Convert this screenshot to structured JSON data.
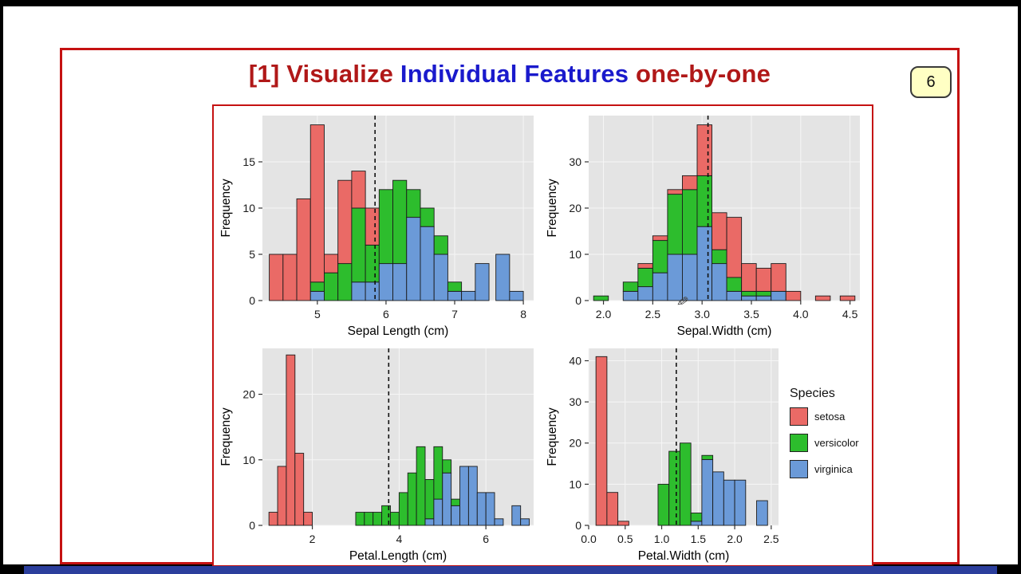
{
  "frame": {
    "bottom_bar_color": "#2b3e9c"
  },
  "slide": {
    "title": {
      "part1": "[1] Visualize ",
      "part2": "Individual Features",
      "part3": " one-by-one"
    },
    "page_number": "6",
    "accent_red": "#b01818",
    "accent_blue": "#1a1acc",
    "border_color": "#c51111"
  },
  "icons": {
    "pencil": "✎"
  },
  "legend": {
    "title": "Species",
    "entries": [
      {
        "label": "setosa",
        "color": "#ea6a66"
      },
      {
        "label": "versicolor",
        "color": "#2dbd2d"
      },
      {
        "label": "virginica",
        "color": "#6b9ad8"
      }
    ]
  },
  "panel_bg": "#e4e4e4",
  "species_colors": [
    "#ea6a66",
    "#2dbd2d",
    "#6b9ad8"
  ],
  "chart_data": [
    {
      "type": "bar",
      "subtype": "stacked-histogram",
      "x_label": "Sepal Length (cm)",
      "y_label": "Frequency",
      "xlim": [
        4.2,
        8.15
      ],
      "ylim": [
        0,
        20
      ],
      "xticks": [
        {
          "v": 5,
          "t": "5"
        },
        {
          "v": 6,
          "t": "6"
        },
        {
          "v": 7,
          "t": "7"
        },
        {
          "v": 8,
          "t": "8"
        }
      ],
      "yticks": [
        {
          "v": 0,
          "t": "0"
        },
        {
          "v": 5,
          "t": "5"
        },
        {
          "v": 10,
          "t": "10"
        },
        {
          "v": 15,
          "t": "15"
        }
      ],
      "mean_line_x": 5.84,
      "bin_width": 0.2,
      "series": [
        "setosa",
        "versicolor",
        "virginica"
      ],
      "bins": [
        {
          "x": 4.3,
          "counts": [
            5,
            0,
            0
          ]
        },
        {
          "x": 4.5,
          "counts": [
            5,
            0,
            0
          ]
        },
        {
          "x": 4.7,
          "counts": [
            11,
            0,
            0
          ]
        },
        {
          "x": 4.9,
          "counts": [
            17,
            1,
            1
          ]
        },
        {
          "x": 5.1,
          "counts": [
            2,
            3,
            0
          ]
        },
        {
          "x": 5.3,
          "counts": [
            9,
            4,
            0
          ]
        },
        {
          "x": 5.5,
          "counts": [
            4,
            8,
            2
          ]
        },
        {
          "x": 5.7,
          "counts": [
            4,
            4,
            2
          ]
        },
        {
          "x": 5.9,
          "counts": [
            0,
            8,
            4
          ]
        },
        {
          "x": 6.1,
          "counts": [
            0,
            9,
            4
          ]
        },
        {
          "x": 6.3,
          "counts": [
            0,
            3,
            9
          ]
        },
        {
          "x": 6.5,
          "counts": [
            0,
            2,
            8
          ]
        },
        {
          "x": 6.7,
          "counts": [
            0,
            2,
            5
          ]
        },
        {
          "x": 6.9,
          "counts": [
            0,
            1,
            1
          ]
        },
        {
          "x": 7.1,
          "counts": [
            0,
            0,
            1
          ]
        },
        {
          "x": 7.3,
          "counts": [
            0,
            0,
            4
          ]
        },
        {
          "x": 7.6,
          "counts": [
            0,
            0,
            5
          ]
        },
        {
          "x": 7.8,
          "counts": [
            0,
            0,
            1
          ]
        }
      ]
    },
    {
      "type": "bar",
      "subtype": "stacked-histogram",
      "x_label": "Sepal.Width (cm)",
      "y_label": "Frequency",
      "xlim": [
        1.85,
        4.6
      ],
      "ylim": [
        0,
        40
      ],
      "xticks": [
        {
          "v": 2.0,
          "t": "2.0"
        },
        {
          "v": 2.5,
          "t": "2.5"
        },
        {
          "v": 3.0,
          "t": "3.0"
        },
        {
          "v": 3.5,
          "t": "3.5"
        },
        {
          "v": 4.0,
          "t": "4.0"
        },
        {
          "v": 4.5,
          "t": "4.5"
        }
      ],
      "yticks": [
        {
          "v": 0,
          "t": "0"
        },
        {
          "v": 10,
          "t": "10"
        },
        {
          "v": 20,
          "t": "20"
        },
        {
          "v": 30,
          "t": "30"
        }
      ],
      "mean_line_x": 3.06,
      "bin_width": 0.15,
      "series": [
        "setosa",
        "versicolor",
        "virginica"
      ],
      "bins": [
        {
          "x": 1.9,
          "counts": [
            0,
            1,
            0
          ]
        },
        {
          "x": 2.2,
          "counts": [
            0,
            2,
            2
          ]
        },
        {
          "x": 2.35,
          "counts": [
            1,
            4,
            3
          ]
        },
        {
          "x": 2.5,
          "counts": [
            1,
            7,
            6
          ]
        },
        {
          "x": 2.65,
          "counts": [
            1,
            13,
            10
          ]
        },
        {
          "x": 2.8,
          "counts": [
            3,
            14,
            10
          ]
        },
        {
          "x": 2.95,
          "counts": [
            11,
            11,
            16
          ]
        },
        {
          "x": 3.1,
          "counts": [
            8,
            3,
            8
          ]
        },
        {
          "x": 3.25,
          "counts": [
            13,
            3,
            2
          ]
        },
        {
          "x": 3.4,
          "counts": [
            6,
            1,
            1
          ]
        },
        {
          "x": 3.55,
          "counts": [
            5,
            1,
            1
          ]
        },
        {
          "x": 3.7,
          "counts": [
            6,
            0,
            2
          ]
        },
        {
          "x": 3.85,
          "counts": [
            2,
            0,
            0
          ]
        },
        {
          "x": 4.15,
          "counts": [
            1,
            0,
            0
          ]
        },
        {
          "x": 4.4,
          "counts": [
            1,
            0,
            0
          ]
        }
      ]
    },
    {
      "type": "bar",
      "subtype": "stacked-histogram",
      "x_label": "Petal.Length (cm)",
      "y_label": "Frequency",
      "xlim": [
        0.85,
        7.1
      ],
      "ylim": [
        0,
        27
      ],
      "xticks": [
        {
          "v": 2,
          "t": "2"
        },
        {
          "v": 4,
          "t": "4"
        },
        {
          "v": 6,
          "t": "6"
        }
      ],
      "yticks": [
        {
          "v": 0,
          "t": "0"
        },
        {
          "v": 10,
          "t": "10"
        },
        {
          "v": 20,
          "t": "20"
        }
      ],
      "mean_line_x": 3.76,
      "bin_width": 0.2,
      "series": [
        "setosa",
        "versicolor",
        "virginica"
      ],
      "bins": [
        {
          "x": 1.0,
          "counts": [
            2,
            0,
            0
          ]
        },
        {
          "x": 1.2,
          "counts": [
            9,
            0,
            0
          ]
        },
        {
          "x": 1.4,
          "counts": [
            26,
            0,
            0
          ]
        },
        {
          "x": 1.6,
          "counts": [
            11,
            0,
            0
          ]
        },
        {
          "x": 1.8,
          "counts": [
            2,
            0,
            0
          ]
        },
        {
          "x": 3.0,
          "counts": [
            0,
            2,
            0
          ]
        },
        {
          "x": 3.2,
          "counts": [
            0,
            2,
            0
          ]
        },
        {
          "x": 3.4,
          "counts": [
            0,
            2,
            0
          ]
        },
        {
          "x": 3.6,
          "counts": [
            0,
            3,
            0
          ]
        },
        {
          "x": 3.8,
          "counts": [
            0,
            2,
            0
          ]
        },
        {
          "x": 4.0,
          "counts": [
            0,
            5,
            0
          ]
        },
        {
          "x": 4.2,
          "counts": [
            0,
            8,
            0
          ]
        },
        {
          "x": 4.4,
          "counts": [
            0,
            12,
            0
          ]
        },
        {
          "x": 4.6,
          "counts": [
            0,
            6,
            1
          ]
        },
        {
          "x": 4.8,
          "counts": [
            0,
            8,
            4
          ]
        },
        {
          "x": 5.0,
          "counts": [
            0,
            2,
            8
          ]
        },
        {
          "x": 5.2,
          "counts": [
            0,
            1,
            3
          ]
        },
        {
          "x": 5.4,
          "counts": [
            0,
            0,
            9
          ]
        },
        {
          "x": 5.6,
          "counts": [
            0,
            0,
            9
          ]
        },
        {
          "x": 5.8,
          "counts": [
            0,
            0,
            5
          ]
        },
        {
          "x": 6.0,
          "counts": [
            0,
            0,
            5
          ]
        },
        {
          "x": 6.2,
          "counts": [
            0,
            0,
            1
          ]
        },
        {
          "x": 6.6,
          "counts": [
            0,
            0,
            3
          ]
        },
        {
          "x": 6.8,
          "counts": [
            0,
            0,
            1
          ]
        }
      ]
    },
    {
      "type": "bar",
      "subtype": "stacked-histogram",
      "x_label": "Petal.Width (cm)",
      "y_label": "Frequency",
      "xlim": [
        0,
        2.6
      ],
      "ylim": [
        0,
        43
      ],
      "xticks": [
        {
          "v": 0.0,
          "t": "0.0"
        },
        {
          "v": 0.5,
          "t": "0.5"
        },
        {
          "v": 1.0,
          "t": "1.0"
        },
        {
          "v": 1.5,
          "t": "1.5"
        },
        {
          "v": 2.0,
          "t": "2.0"
        },
        {
          "v": 2.5,
          "t": "2.5"
        }
      ],
      "yticks": [
        {
          "v": 0,
          "t": "0"
        },
        {
          "v": 10,
          "t": "10"
        },
        {
          "v": 20,
          "t": "20"
        },
        {
          "v": 30,
          "t": "30"
        },
        {
          "v": 40,
          "t": "40"
        }
      ],
      "mean_line_x": 1.2,
      "bin_width": 0.15,
      "series": [
        "setosa",
        "versicolor",
        "virginica"
      ],
      "bins": [
        {
          "x": 0.1,
          "counts": [
            41,
            0,
            0
          ]
        },
        {
          "x": 0.25,
          "counts": [
            8,
            0,
            0
          ]
        },
        {
          "x": 0.4,
          "counts": [
            1,
            0,
            0
          ]
        },
        {
          "x": 0.95,
          "counts": [
            0,
            10,
            0
          ]
        },
        {
          "x": 1.1,
          "counts": [
            0,
            18,
            0
          ]
        },
        {
          "x": 1.25,
          "counts": [
            0,
            20,
            0
          ]
        },
        {
          "x": 1.4,
          "counts": [
            0,
            2,
            1
          ]
        },
        {
          "x": 1.55,
          "counts": [
            0,
            1,
            16
          ]
        },
        {
          "x": 1.7,
          "counts": [
            0,
            0,
            13
          ]
        },
        {
          "x": 1.85,
          "counts": [
            0,
            0,
            11
          ]
        },
        {
          "x": 2.0,
          "counts": [
            0,
            0,
            11
          ]
        },
        {
          "x": 2.3,
          "counts": [
            0,
            0,
            6
          ]
        }
      ]
    }
  ]
}
